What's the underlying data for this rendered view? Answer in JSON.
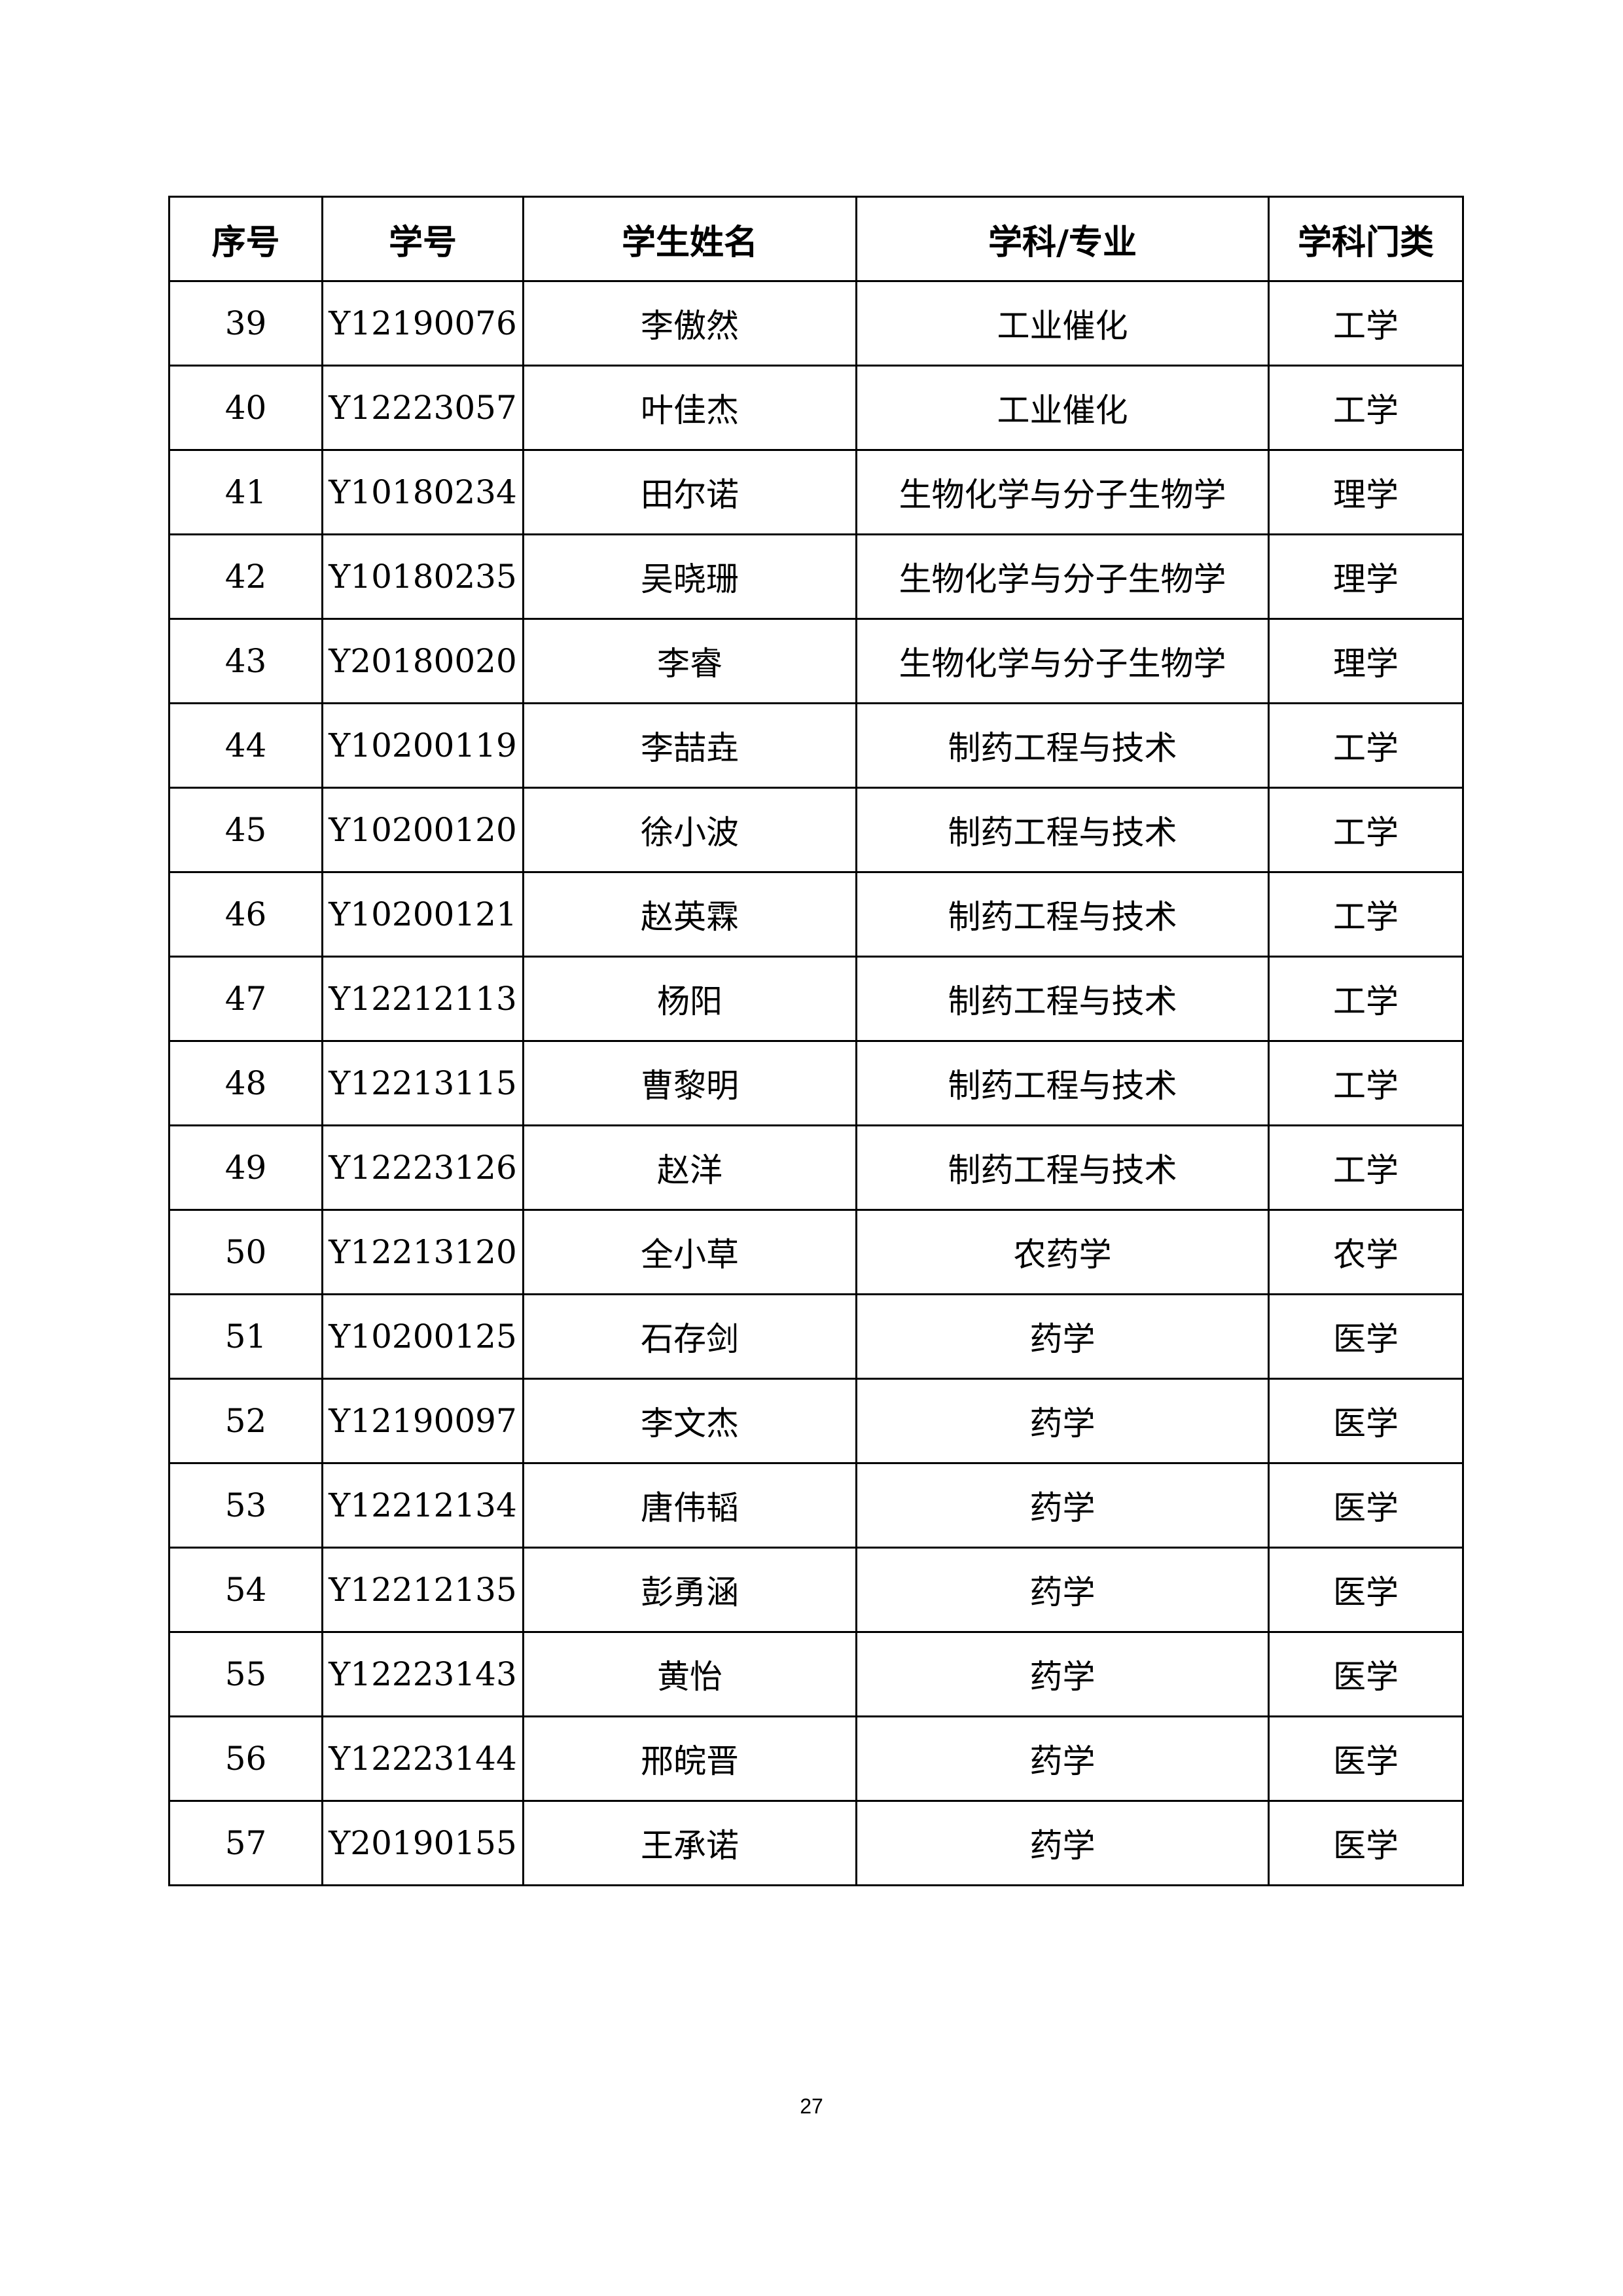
{
  "table": {
    "headers": [
      "序号",
      "学号",
      "学生姓名",
      "学科/专业",
      "学科门类"
    ],
    "rows": [
      [
        "39",
        "Y12190076",
        "李傲然",
        "工业催化",
        "工学"
      ],
      [
        "40",
        "Y12223057",
        "叶佳杰",
        "工业催化",
        "工学"
      ],
      [
        "41",
        "Y10180234",
        "田尔诺",
        "生物化学与分子生物学",
        "理学"
      ],
      [
        "42",
        "Y10180235",
        "吴晓珊",
        "生物化学与分子生物学",
        "理学"
      ],
      [
        "43",
        "Y20180020",
        "李睿",
        "生物化学与分子生物学",
        "理学"
      ],
      [
        "44",
        "Y10200119",
        "李喆垚",
        "制药工程与技术",
        "工学"
      ],
      [
        "45",
        "Y10200120",
        "徐小波",
        "制药工程与技术",
        "工学"
      ],
      [
        "46",
        "Y10200121",
        "赵英霖",
        "制药工程与技术",
        "工学"
      ],
      [
        "47",
        "Y12212113",
        "杨阳",
        "制药工程与技术",
        "工学"
      ],
      [
        "48",
        "Y12213115",
        "曹黎明",
        "制药工程与技术",
        "工学"
      ],
      [
        "49",
        "Y12223126",
        "赵洋",
        "制药工程与技术",
        "工学"
      ],
      [
        "50",
        "Y12213120",
        "全小草",
        "农药学",
        "农学"
      ],
      [
        "51",
        "Y10200125",
        "石存剑",
        "药学",
        "医学"
      ],
      [
        "52",
        "Y12190097",
        "李文杰",
        "药学",
        "医学"
      ],
      [
        "53",
        "Y12212134",
        "唐伟韬",
        "药学",
        "医学"
      ],
      [
        "54",
        "Y12212135",
        "彭勇涵",
        "药学",
        "医学"
      ],
      [
        "55",
        "Y12223143",
        "黄怡",
        "药学",
        "医学"
      ],
      [
        "56",
        "Y12223144",
        "邢皖晋",
        "药学",
        "医学"
      ],
      [
        "57",
        "Y20190155",
        "王承诺",
        "药学",
        "医学"
      ]
    ]
  },
  "page_number": "27"
}
